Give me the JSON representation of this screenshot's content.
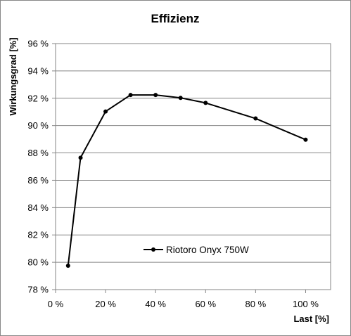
{
  "chart_data": {
    "type": "line",
    "title": "Effizienz",
    "xlabel": "Last [%]",
    "ylabel": "Wirkungsgrad [%]",
    "xlim": [
      0,
      110
    ],
    "ylim": [
      78,
      96
    ],
    "x_ticks": [
      0,
      20,
      40,
      60,
      80,
      100
    ],
    "y_ticks": [
      78,
      80,
      82,
      84,
      86,
      88,
      90,
      92,
      94,
      96
    ],
    "x_tick_labels": [
      "0 %",
      "20 %",
      "40 %",
      "60 %",
      "80 %",
      "100 %"
    ],
    "y_tick_labels": [
      "78 %",
      "80 %",
      "82 %",
      "84 %",
      "86 %",
      "88 %",
      "90 %",
      "92 %",
      "94 %",
      "96 %"
    ],
    "grid": "horizontal",
    "legend_position": "lower-center",
    "series": [
      {
        "name": "Riotoro Onyx 750W",
        "color": "#000000",
        "x": [
          5,
          10,
          20,
          30,
          40,
          50,
          60,
          80,
          100
        ],
        "y": [
          79.75,
          87.65,
          91.03,
          92.24,
          92.24,
          92.03,
          91.66,
          90.52,
          88.97
        ]
      }
    ]
  }
}
